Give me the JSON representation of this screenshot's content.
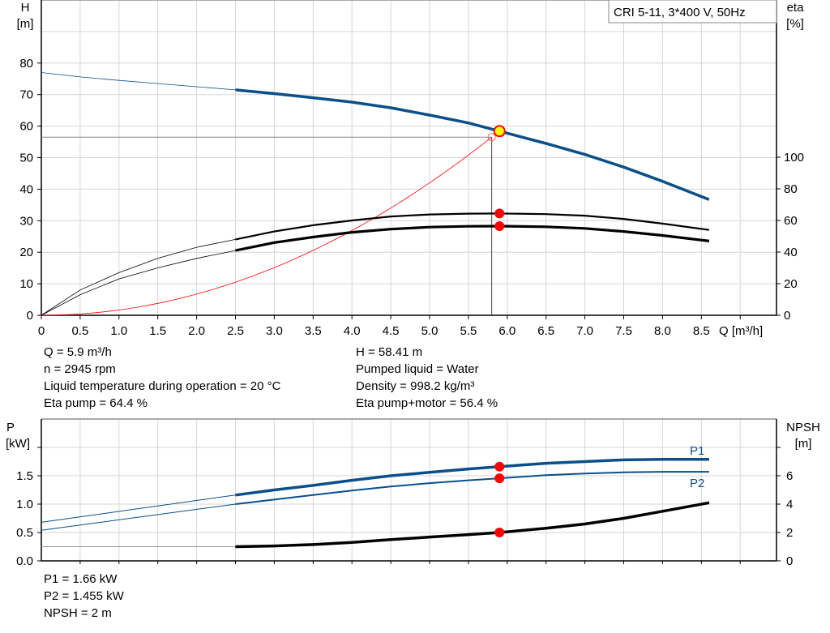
{
  "chart_data": [
    {
      "type": "line",
      "title": "CRI 5-11, 3*400 V, 50Hz",
      "xlabel": "Q [m³/h]",
      "ylabel": "H [m]",
      "y2label": "eta [%]",
      "xlim": [
        0,
        9.5
      ],
      "ylim": [
        0,
        100
      ],
      "y2lim": [
        0,
        200
      ],
      "x_ticks": [
        "0",
        "0.5",
        "1.0",
        "1.5",
        "2.0",
        "2.5",
        "3.0",
        "3.5",
        "4.0",
        "4.5",
        "5.0",
        "5.5",
        "6.0",
        "6.5",
        "7.0",
        "7.5",
        "8.0",
        "8.5"
      ],
      "y_ticks": [
        "0",
        "10",
        "20",
        "30",
        "40",
        "50",
        "60",
        "70",
        "80"
      ],
      "y2_ticks": [
        "0",
        "20",
        "40",
        "60",
        "80",
        "100"
      ],
      "grid": true,
      "x": [
        0,
        0.5,
        1,
        1.5,
        2,
        2.5,
        3,
        3.5,
        4,
        4.5,
        5,
        5.5,
        5.9,
        6.5,
        7,
        7.5,
        8,
        8.6
      ],
      "series": [
        {
          "key": "H",
          "axis": "left",
          "color": "#0b4f8a",
          "values": [
            77,
            75.6,
            74.5,
            73.5,
            72.5,
            71.5,
            70.3,
            69,
            67.6,
            65.8,
            63.5,
            61,
            58.41,
            54.5,
            51,
            47,
            42.5,
            36.7
          ]
        },
        {
          "key": "eta_pump",
          "axis": "right",
          "color": "#000000",
          "values": [
            0,
            16,
            27,
            36,
            43,
            48,
            53,
            57,
            60,
            62.5,
            63.8,
            64.3,
            64.4,
            64,
            63,
            61,
            58,
            54
          ]
        },
        {
          "key": "eta_pump_motor",
          "axis": "right",
          "color": "#000000",
          "values": [
            0,
            13,
            23,
            30,
            36,
            41,
            46,
            49.5,
            52.5,
            54.5,
            55.8,
            56.3,
            56.4,
            56,
            55,
            53,
            50.5,
            47
          ]
        }
      ],
      "system_curve": {
        "color": "#ff0000",
        "coefficient": 1.68,
        "q_end": 5.8
      },
      "duty_point": {
        "Q": 5.9,
        "H": 58.41,
        "eta_pump": 64.4,
        "eta_pump_motor": 56.4
      },
      "required_point": {
        "Q": 5.8,
        "H": 56.5
      }
    },
    {
      "type": "line",
      "xlim": [
        0,
        9.5
      ],
      "ylabel": "P [kW]",
      "y2label": "NPSH [m]",
      "ylim": [
        0,
        2.5
      ],
      "y2lim": [
        0,
        10
      ],
      "y_ticks": [
        "0.0",
        "0.5",
        "1.0",
        "1.5",
        ""
      ],
      "y2_ticks": [
        "0",
        "2",
        "4",
        "6",
        ""
      ],
      "grid": true,
      "x": [
        0,
        2.5,
        3,
        3.5,
        4,
        4.5,
        5,
        5.5,
        5.9,
        6.5,
        7,
        7.5,
        8,
        8.6
      ],
      "series": [
        {
          "name": "P1",
          "axis": "left",
          "color": "#0b4f8a",
          "values": [
            0.68,
            1.16,
            1.25,
            1.33,
            1.42,
            1.5,
            1.56,
            1.62,
            1.66,
            1.72,
            1.75,
            1.78,
            1.79,
            1.79
          ]
        },
        {
          "name": "P2",
          "axis": "left",
          "color": "#0b4f8a",
          "values": [
            0.54,
            1.0,
            1.08,
            1.16,
            1.24,
            1.31,
            1.37,
            1.42,
            1.455,
            1.51,
            1.54,
            1.56,
            1.57,
            1.57
          ]
        },
        {
          "key": "NPSH",
          "axis": "right",
          "color": "#000000",
          "values": [
            1.0,
            1.0,
            1.05,
            1.15,
            1.3,
            1.5,
            1.68,
            1.85,
            2.0,
            2.3,
            2.6,
            3.0,
            3.5,
            4.1
          ]
        }
      ],
      "duty_point": {
        "Q": 5.9,
        "P1": 1.66,
        "P2": 1.455,
        "NPSH": 2
      }
    }
  ],
  "labels": {
    "h_axis": [
      "H",
      "[m]"
    ],
    "eta_axis": [
      "eta",
      "[%]"
    ],
    "q_axis": "Q [m³/h]",
    "p_axis": [
      "P",
      "[kW]"
    ],
    "npsh_axis": [
      "NPSH",
      "[m]"
    ]
  },
  "info_left": [
    "Q = 5.9 m³/h",
    "n = 2945 rpm",
    "Liquid temperature during operation = 20 °C",
    "Eta pump = 64.4 %"
  ],
  "info_right": [
    "H = 58.41 m",
    "Pumped liquid = Water",
    "Density = 998.2 kg/m³",
    "Eta pump+motor = 56.4 %"
  ],
  "info_bottom": [
    "P1 = 1.66 kW",
    "P2 = 1.455 kW",
    "NPSH = 2 m"
  ]
}
